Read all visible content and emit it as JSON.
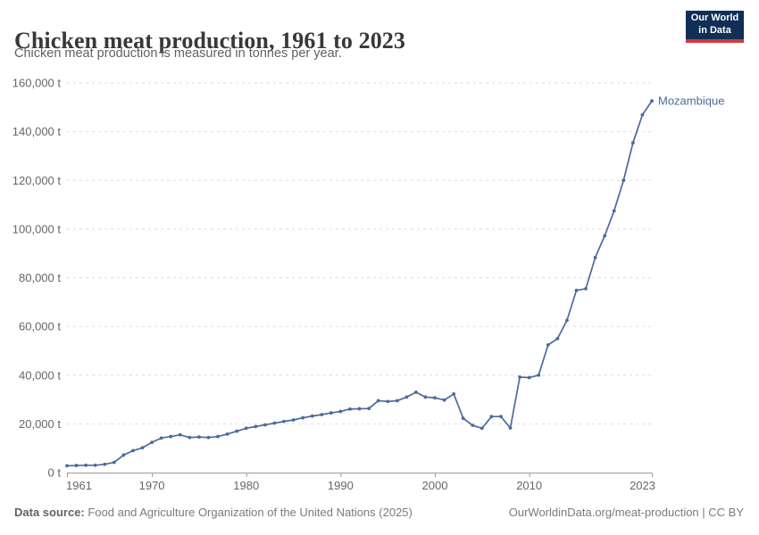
{
  "header": {
    "logo": {
      "line1": "Our World",
      "line2": "in Data"
    }
  },
  "footer": {
    "source_label": "Data source:",
    "source_text": " Food and Agriculture Organization of the United Nations (2025)",
    "credit": "OurWorldinData.org/meat-production | CC BY"
  },
  "colors": {
    "line": "#4C6A9C",
    "grid": "#dddddd",
    "axis": "#9a9a9a",
    "tick_label": "#666666",
    "logo_bg": "#112e57",
    "logo_red": "#d23a3f"
  },
  "chart_data": {
    "type": "line",
    "title": "Chicken meat production, 1961 to 2023",
    "subtitle": "Chicken meat production is measured in tonnes per year.",
    "entity": "Mozambique",
    "unit_suffix": " t",
    "grid": "horizontal-dashed",
    "legend_position": "end-of-line-label",
    "xlim": [
      1961,
      2023
    ],
    "ylim": [
      0,
      160000
    ],
    "x_ticks": [
      1961,
      1970,
      1980,
      1990,
      2000,
      2010,
      2023
    ],
    "y_ticks": [
      0,
      20000,
      40000,
      60000,
      80000,
      100000,
      120000,
      140000,
      160000
    ],
    "x": [
      1961,
      1962,
      1963,
      1964,
      1965,
      1966,
      1967,
      1968,
      1969,
      1970,
      1971,
      1972,
      1973,
      1974,
      1975,
      1976,
      1977,
      1978,
      1979,
      1980,
      1981,
      1982,
      1983,
      1984,
      1985,
      1986,
      1987,
      1988,
      1989,
      1990,
      1991,
      1992,
      1993,
      1994,
      1995,
      1996,
      1997,
      1998,
      1999,
      2000,
      2001,
      2002,
      2003,
      2004,
      2005,
      2006,
      2007,
      2008,
      2009,
      2010,
      2011,
      2012,
      2013,
      2014,
      2015,
      2016,
      2017,
      2018,
      2019,
      2020,
      2021,
      2022,
      2023
    ],
    "values": [
      2800,
      2900,
      3000,
      3000,
      3400,
      4200,
      7200,
      9000,
      10200,
      12400,
      14200,
      14800,
      15500,
      14400,
      14600,
      14400,
      14800,
      15800,
      17000,
      18200,
      18900,
      19600,
      20300,
      21000,
      21600,
      22500,
      23200,
      23800,
      24500,
      25100,
      26100,
      26200,
      26300,
      29500,
      29200,
      29500,
      31000,
      33000,
      31000,
      30700,
      29800,
      32300,
      22300,
      19400,
      18200,
      23000,
      23000,
      18300,
      39200,
      39000,
      40000,
      52400,
      55000,
      62500,
      74800,
      75500,
      88300,
      97200,
      107500,
      120000,
      135400,
      146900,
      152600
    ]
  }
}
